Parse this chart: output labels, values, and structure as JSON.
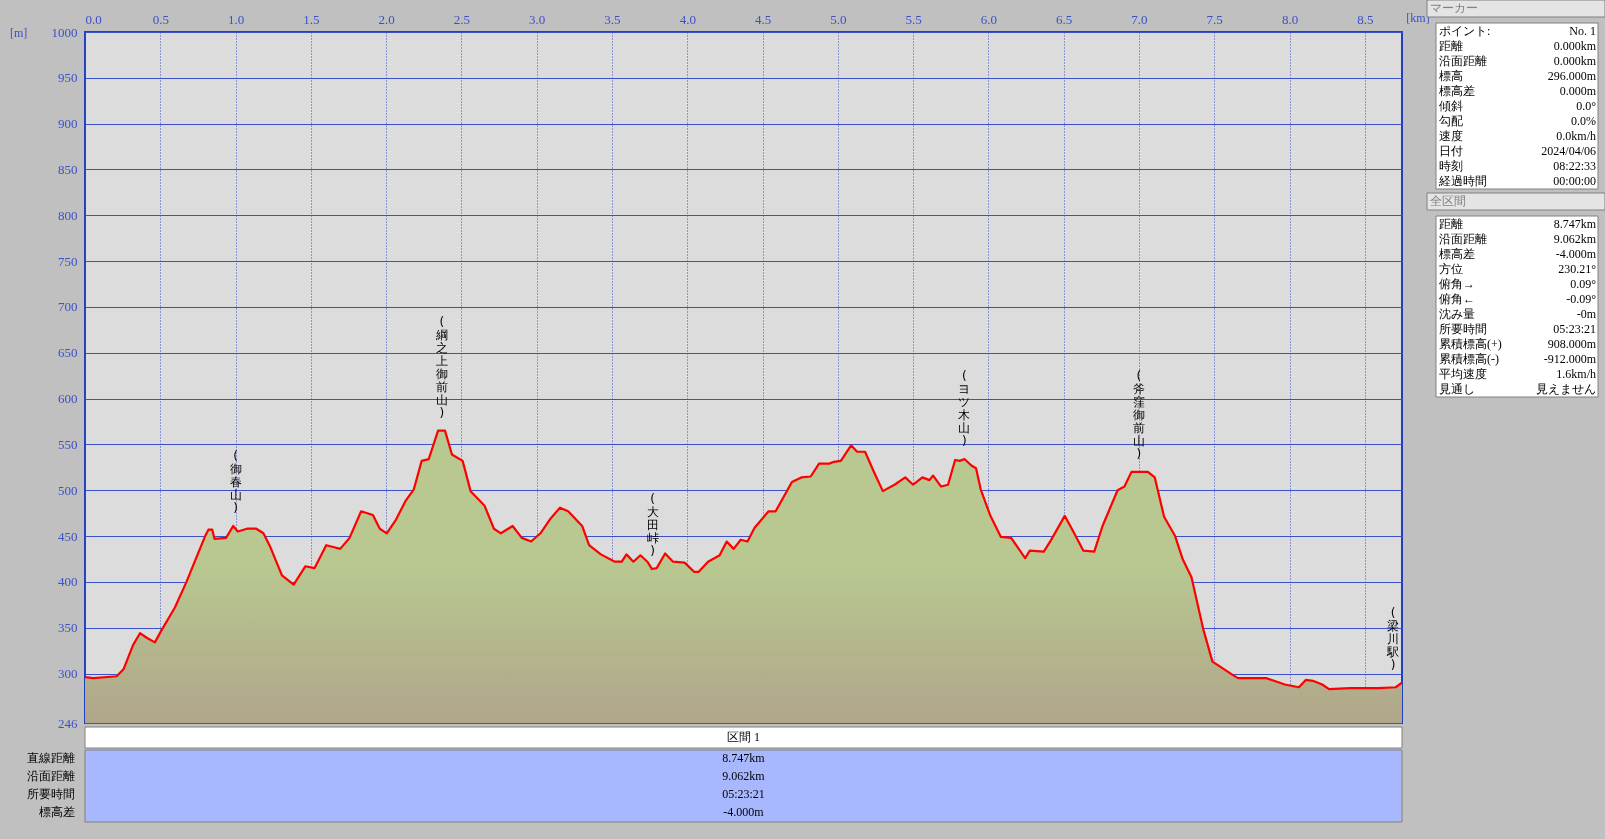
{
  "chart_data": {
    "type": "area",
    "xlabel": "[km]",
    "ylabel": "[m]",
    "x": [
      0,
      0.056,
      0.21,
      0.257,
      0.319,
      0.365,
      0.41,
      0.464,
      0.504,
      0.597,
      0.674,
      0.736,
      0.798,
      0.82,
      0.845,
      0.86,
      0.937,
      0.984,
      1.015,
      1.076,
      1.138,
      1.185,
      1.231,
      1.308,
      1.386,
      1.463,
      1.525,
      1.602,
      1.649,
      1.695,
      1.757,
      1.834,
      1.912,
      1.958,
      2.004,
      2.066,
      2.128,
      2.184,
      2.236,
      2.283,
      2.345,
      2.391,
      2.437,
      2.508,
      2.561,
      2.654,
      2.716,
      2.762,
      2.84,
      2.901,
      2.963,
      3.025,
      3.087,
      3.155,
      3.209,
      3.302,
      3.348,
      3.426,
      3.519,
      3.565,
      3.596,
      3.642,
      3.689,
      3.735,
      3.766,
      3.797,
      3.853,
      3.906,
      3.983,
      4.045,
      4.076,
      4.138,
      4.215,
      4.262,
      4.308,
      4.355,
      4.4,
      4.447,
      4.54,
      4.587,
      4.695,
      4.757,
      4.82,
      4.875,
      4.943,
      4.975,
      5.02,
      5.088,
      5.128,
      5.181,
      5.237,
      5.299,
      5.376,
      5.448,
      5.5,
      5.562,
      5.608,
      5.633,
      5.686,
      5.732,
      5.779,
      5.81,
      5.841,
      5.887,
      5.918,
      5.949,
      6.011,
      6.083,
      6.151,
      6.244,
      6.275,
      6.368,
      6.414,
      6.507,
      6.554,
      6.631,
      6.703,
      6.758,
      6.858,
      6.904,
      6.95,
      7.059,
      7.105,
      7.167,
      7.24,
      7.29,
      7.349,
      7.426,
      7.488,
      7.534,
      7.627,
      7.658,
      7.845,
      7.969,
      8.062,
      8.108,
      8.155,
      8.217,
      8.263,
      8.403,
      8.59,
      8.705,
      8.747
    ],
    "series": [
      {
        "color": "#ff0000",
        "values": [
          296,
          295,
          297,
          305,
          331,
          344,
          339,
          334,
          346,
          372,
          400,
          425,
          450,
          457,
          457,
          447,
          448,
          461,
          455,
          458,
          458,
          453,
          438,
          407,
          397,
          417,
          415,
          440,
          438,
          436,
          448,
          477,
          473,
          458,
          453,
          468,
          488,
          501,
          532,
          534,
          565,
          565,
          539,
          532,
          499,
          483,
          458,
          453,
          461,
          448,
          444,
          453,
          468,
          481,
          477,
          461,
          440,
          430,
          422,
          422,
          430,
          422,
          429,
          422,
          414,
          415,
          431,
          422,
          421,
          411,
          411,
          422,
          429,
          444,
          436,
          446,
          444,
          459,
          477,
          477,
          509,
          514,
          515,
          529,
          529,
          531,
          532,
          549,
          542,
          542,
          521,
          499,
          506,
          514,
          506,
          514,
          511,
          516,
          504,
          506,
          533,
          532,
          534,
          527,
          524,
          501,
          473,
          449,
          448,
          426,
          434,
          433,
          445,
          472,
          458,
          434,
          433,
          461,
          500,
          504,
          520,
          520,
          514,
          471,
          450,
          425,
          405,
          349,
          313,
          308,
          298,
          295,
          295,
          288,
          285,
          293,
          292,
          288,
          283,
          284,
          284,
          285,
          290
        ]
      }
    ],
    "xlim": [
      0,
      8.747
    ],
    "xticks": [
      {
        "value": 0,
        "label": "0.0"
      },
      {
        "value": 0.5,
        "label": "0.5"
      },
      {
        "value": 1,
        "label": "1.0"
      },
      {
        "value": 1.5,
        "label": "1.5"
      },
      {
        "value": 2,
        "label": "2.0"
      },
      {
        "value": 2.5,
        "label": "2.5"
      },
      {
        "value": 3,
        "label": "3.0"
      },
      {
        "value": 3.5,
        "label": "3.5"
      },
      {
        "value": 4,
        "label": "4.0"
      },
      {
        "value": 4.5,
        "label": "4.5"
      },
      {
        "value": 5,
        "label": "5.0"
      },
      {
        "value": 5.5,
        "label": "5.5"
      },
      {
        "value": 6,
        "label": "6.0"
      },
      {
        "value": 6.5,
        "label": "6.5"
      },
      {
        "value": 7,
        "label": "7.0"
      },
      {
        "value": 7.5,
        "label": "7.5"
      },
      {
        "value": 8,
        "label": "8.0"
      },
      {
        "value": 8.5,
        "label": "8.5"
      }
    ],
    "ylim": [
      246,
      1000
    ],
    "yticks": [
      246,
      300,
      350,
      400,
      450,
      500,
      550,
      600,
      650,
      700,
      750,
      800,
      850,
      900,
      950,
      1000
    ],
    "grid": true,
    "annotations": [
      {
        "text": "(御春山)",
        "x": 1.0,
        "y": 461
      },
      {
        "text": "(綱之上御前山)",
        "x": 2.37,
        "y": 565
      },
      {
        "text": "(大田峠)",
        "x": 3.77,
        "y": 414
      },
      {
        "text": "(ヨツ木山)",
        "x": 5.84,
        "y": 534
      },
      {
        "text": "(斧窪御前山)",
        "x": 7.0,
        "y": 520
      },
      {
        "text": "(梁川駅)",
        "x": 8.747,
        "y": 290
      },
      "マーカー",
      "ポイント:",
      "No. 1",
      "距離",
      "0.000km",
      "沿面距離",
      "0.000km",
      "標高",
      "296.000m",
      "標高差",
      "0.000m",
      "傾斜",
      "0.0°",
      "勾配",
      "0.0%",
      "速度",
      "0.0km/h",
      "日付",
      "2024/04/06",
      "時刻",
      "08:22:33",
      "経過時間",
      "00:00:00",
      "全区間",
      "距離",
      "8.747km",
      "沿面距離",
      "9.062km",
      "標高差",
      "-4.000m",
      "方位",
      "230.21°",
      "俯角→",
      "0.09°",
      "俯角←",
      "-0.09°",
      "沈み量",
      "-0m",
      "所要時間",
      "05:23:21",
      "累積標高(+)",
      "908.000m",
      "累積標高(-)",
      "-912.000m",
      "平均速度",
      "1.6km/h",
      "見通し",
      "見えません",
      "区間 1",
      "直線距離",
      "8.747km",
      "沿面距離",
      "9.062km",
      "所要時間",
      "05:23:21",
      "標高差",
      "-4.000m"
    ]
  }
}
